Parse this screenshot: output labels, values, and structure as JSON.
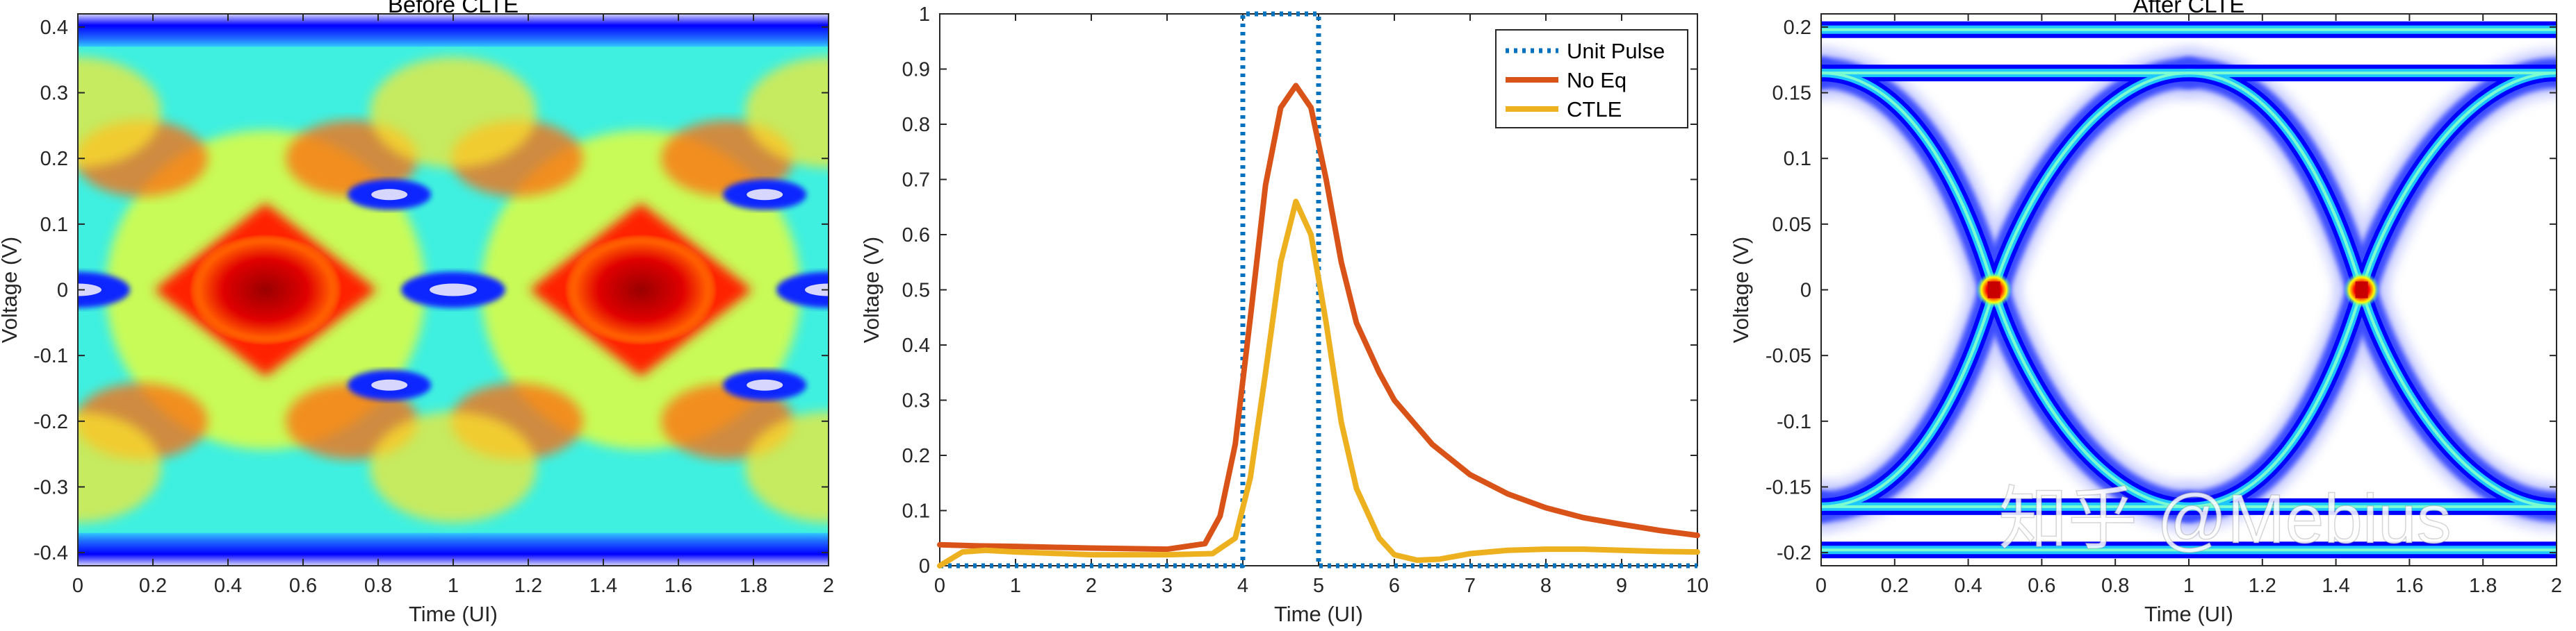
{
  "chart_data": [
    {
      "type": "heatmap",
      "title": "Before CLTE",
      "xlabel": "Time (UI)",
      "ylabel": "Voltage (V)",
      "xlim": [
        0,
        2
      ],
      "ylim": [
        -0.42,
        0.42
      ],
      "xticks": [
        0,
        0.2,
        0.4,
        0.6,
        0.8,
        1,
        1.2,
        1.4,
        1.6,
        1.8,
        2
      ],
      "yticks": [
        -0.4,
        -0.3,
        -0.2,
        -0.1,
        0,
        0.1,
        0.2,
        0.3,
        0.4
      ],
      "colormap": [
        "#0000ff",
        "#00ffff",
        "#ffff00",
        "#ff0000",
        "#a00000"
      ],
      "eye_description": "closed eye: dense red diamond at crossing points x=0.5 and x=1.5, rails at +/-0.4 V"
    },
    {
      "type": "line",
      "title": "",
      "xlabel": "Time (UI)",
      "ylabel": "Voltage (V)",
      "xlim": [
        0,
        10
      ],
      "ylim": [
        0,
        1
      ],
      "xticks": [
        0,
        1,
        2,
        3,
        4,
        5,
        6,
        7,
        8,
        9,
        10
      ],
      "yticks": [
        0,
        0.1,
        0.2,
        0.3,
        0.4,
        0.5,
        0.6,
        0.7,
        0.8,
        0.9,
        1
      ],
      "legend_position": "top-right",
      "series": [
        {
          "name": "Unit Pulse",
          "color": "#0072bd",
          "style": "dotted",
          "x": [
            0,
            4,
            4,
            5,
            5,
            10
          ],
          "y": [
            0,
            0,
            1,
            1,
            0,
            0
          ]
        },
        {
          "name": "No Eq",
          "color": "#d95319",
          "style": "solid",
          "x": [
            0,
            0.5,
            1,
            2,
            3,
            3.5,
            3.7,
            3.9,
            4.1,
            4.3,
            4.5,
            4.7,
            4.9,
            5.1,
            5.3,
            5.5,
            5.8,
            6,
            6.5,
            7,
            7.5,
            8,
            8.5,
            9,
            9.5,
            10
          ],
          "y": [
            0.038,
            0.036,
            0.035,
            0.032,
            0.03,
            0.04,
            0.09,
            0.22,
            0.45,
            0.69,
            0.83,
            0.87,
            0.83,
            0.7,
            0.55,
            0.44,
            0.35,
            0.3,
            0.22,
            0.165,
            0.13,
            0.105,
            0.087,
            0.075,
            0.064,
            0.055
          ]
        },
        {
          "name": "CTLE",
          "color": "#edb120",
          "style": "solid",
          "x": [
            0,
            0.3,
            0.6,
            1,
            2,
            3,
            3.6,
            3.9,
            4.1,
            4.3,
            4.5,
            4.7,
            4.9,
            5.1,
            5.3,
            5.5,
            5.8,
            6,
            6.3,
            6.6,
            7,
            7.5,
            8,
            8.5,
            9,
            9.5,
            10
          ],
          "y": [
            0.0,
            0.025,
            0.028,
            0.025,
            0.02,
            0.02,
            0.022,
            0.05,
            0.16,
            0.35,
            0.55,
            0.66,
            0.6,
            0.44,
            0.26,
            0.14,
            0.05,
            0.02,
            0.01,
            0.012,
            0.022,
            0.028,
            0.03,
            0.03,
            0.028,
            0.026,
            0.025
          ]
        }
      ]
    },
    {
      "type": "heatmap",
      "title": "After CLTE",
      "xlabel": "Time (UI)",
      "ylabel": "Voltage (V)",
      "xlim": [
        0,
        2
      ],
      "ylim": [
        -0.21,
        0.21
      ],
      "xticks": [
        0,
        0.2,
        0.4,
        0.6,
        0.8,
        1,
        1.2,
        1.4,
        1.6,
        1.8,
        2
      ],
      "yticks": [
        -0.2,
        -0.15,
        -0.1,
        -0.05,
        0,
        0.05,
        0.1,
        0.15,
        0.2
      ],
      "colormap": [
        "#0000ff",
        "#00ffff",
        "#ffff00",
        "#ff0000",
        "#a00000"
      ],
      "eye_description": "open eye: thin crossing traces, red hotspots at x=0.47 and x=1.47, rails at +/-0.2 V, inner rails at +/-0.165 V"
    }
  ],
  "watermark": "知乎 @Mebius"
}
